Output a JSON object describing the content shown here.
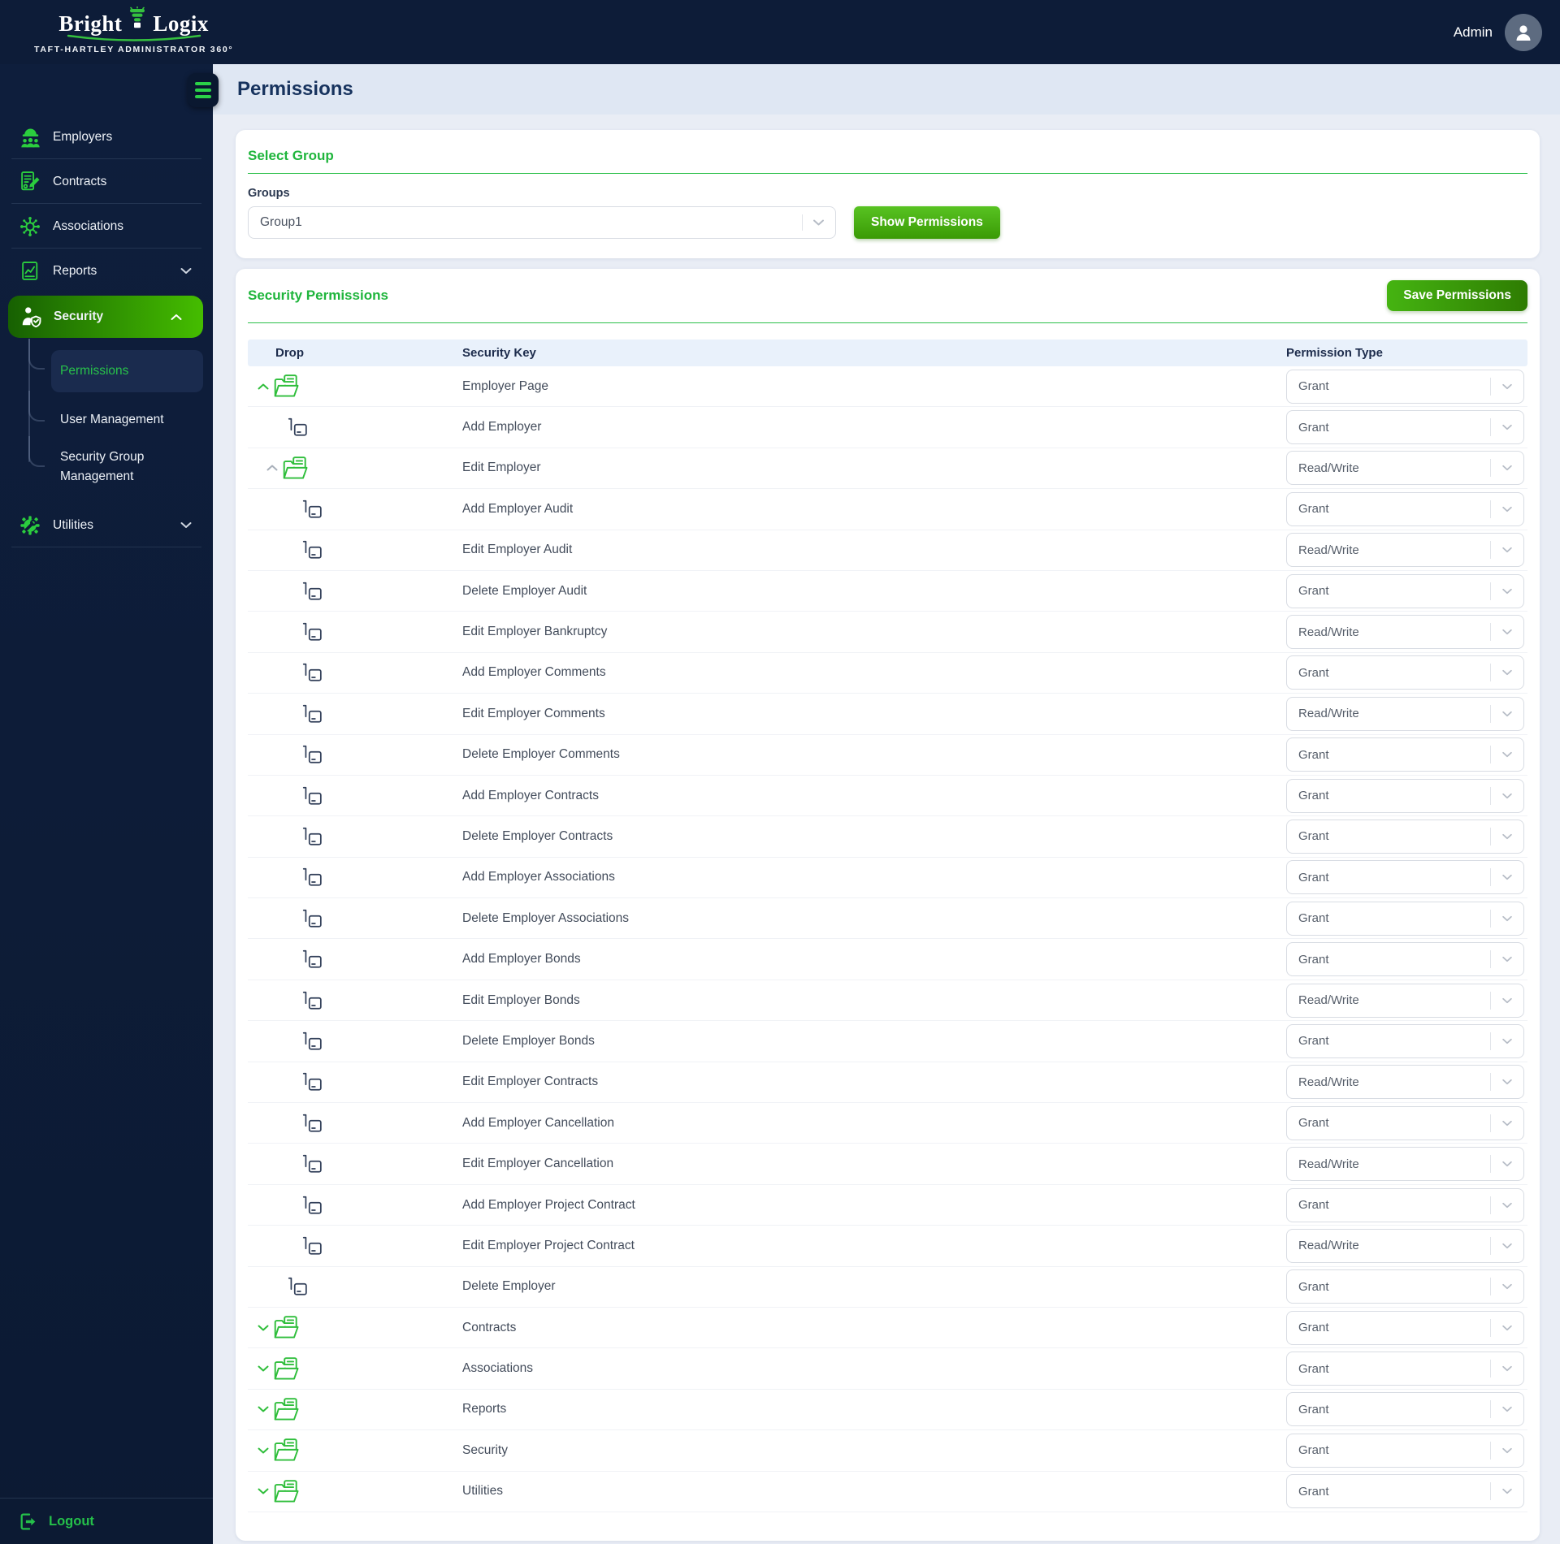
{
  "brand": {
    "word1": "Bright",
    "word2": "Logix",
    "tagline": "Taft-Hartley Administrator 360°"
  },
  "topbar": {
    "username": "Admin"
  },
  "page_title": "Permissions",
  "sidebar": {
    "items": [
      {
        "label": "Employers",
        "icon": "employers-icon"
      },
      {
        "label": "Contracts",
        "icon": "contracts-icon"
      },
      {
        "label": "Associations",
        "icon": "associations-icon"
      },
      {
        "label": "Reports",
        "icon": "reports-icon",
        "chevron": "down"
      },
      {
        "label": "Security",
        "icon": "security-icon",
        "chevron": "up",
        "active": true
      },
      {
        "label": "Utilities",
        "icon": "utilities-icon",
        "chevron": "down"
      }
    ],
    "security_submenu": [
      {
        "label": "Permissions",
        "active": true
      },
      {
        "label": "User Management"
      },
      {
        "label": "Security Group Management"
      }
    ],
    "logout_label": "Logout"
  },
  "select_group": {
    "heading": "Select Group",
    "groups_label": "Groups",
    "selected_group": "Group1",
    "show_permissions_label": "Show Permissions"
  },
  "security_permissions": {
    "heading": "Security Permissions",
    "save_label": "Save Permissions",
    "columns": {
      "drop": "Drop",
      "key": "Security Key",
      "type": "Permission Type"
    },
    "rows": [
      {
        "key": "Employer Page",
        "permission": "Grant",
        "kind": "group",
        "chevron": "up",
        "chevron_color": "green",
        "indent": 0,
        "icon": "folder-open-icon"
      },
      {
        "key": "Add Employer",
        "permission": "Grant",
        "kind": "leaf",
        "indent": 1,
        "icon": "subitem-icon"
      },
      {
        "key": "Edit Employer",
        "permission": "Read/Write",
        "kind": "group",
        "chevron": "up",
        "chevron_color": "gray",
        "indent": 1,
        "icon": "folder-open-icon"
      },
      {
        "key": "Add Employer Audit",
        "permission": "Grant",
        "kind": "leaf",
        "indent": 2,
        "icon": "subitem-icon"
      },
      {
        "key": "Edit Employer Audit",
        "permission": "Read/Write",
        "kind": "leaf",
        "indent": 2,
        "icon": "subitem-icon"
      },
      {
        "key": "Delete Employer Audit",
        "permission": "Grant",
        "kind": "leaf",
        "indent": 2,
        "icon": "subitem-icon"
      },
      {
        "key": "Edit Employer Bankruptcy",
        "permission": "Read/Write",
        "kind": "leaf",
        "indent": 2,
        "icon": "subitem-icon"
      },
      {
        "key": "Add Employer Comments",
        "permission": "Grant",
        "kind": "leaf",
        "indent": 2,
        "icon": "subitem-icon"
      },
      {
        "key": "Edit Employer Comments",
        "permission": "Read/Write",
        "kind": "leaf",
        "indent": 2,
        "icon": "subitem-icon"
      },
      {
        "key": "Delete Employer Comments",
        "permission": "Grant",
        "kind": "leaf",
        "indent": 2,
        "icon": "subitem-icon"
      },
      {
        "key": "Add Employer Contracts",
        "permission": "Grant",
        "kind": "leaf",
        "indent": 2,
        "icon": "subitem-icon"
      },
      {
        "key": "Delete Employer Contracts",
        "permission": "Grant",
        "kind": "leaf",
        "indent": 2,
        "icon": "subitem-icon"
      },
      {
        "key": "Add Employer Associations",
        "permission": "Grant",
        "kind": "leaf",
        "indent": 2,
        "icon": "subitem-icon"
      },
      {
        "key": "Delete Employer Associations",
        "permission": "Grant",
        "kind": "leaf",
        "indent": 2,
        "icon": "subitem-icon"
      },
      {
        "key": "Add Employer Bonds",
        "permission": "Grant",
        "kind": "leaf",
        "indent": 2,
        "icon": "subitem-icon"
      },
      {
        "key": "Edit Employer Bonds",
        "permission": "Read/Write",
        "kind": "leaf",
        "indent": 2,
        "icon": "subitem-icon"
      },
      {
        "key": "Delete Employer Bonds",
        "permission": "Grant",
        "kind": "leaf",
        "indent": 2,
        "icon": "subitem-icon"
      },
      {
        "key": "Edit Employer Contracts",
        "permission": "Read/Write",
        "kind": "leaf",
        "indent": 2,
        "icon": "subitem-icon"
      },
      {
        "key": "Add Employer Cancellation",
        "permission": "Grant",
        "kind": "leaf",
        "indent": 2,
        "icon": "subitem-icon"
      },
      {
        "key": "Edit Employer Cancellation",
        "permission": "Read/Write",
        "kind": "leaf",
        "indent": 2,
        "icon": "subitem-icon"
      },
      {
        "key": "Add Employer Project Contract",
        "permission": "Grant",
        "kind": "leaf",
        "indent": 2,
        "icon": "subitem-icon"
      },
      {
        "key": "Edit Employer Project Contract",
        "permission": "Read/Write",
        "kind": "leaf",
        "indent": 2,
        "icon": "subitem-icon"
      },
      {
        "key": "Delete Employer",
        "permission": "Grant",
        "kind": "leaf",
        "indent": 1,
        "icon": "subitem-icon"
      },
      {
        "key": "Contracts",
        "permission": "Grant",
        "kind": "group",
        "chevron": "down",
        "chevron_color": "green",
        "indent": 0,
        "icon": "folder-open-icon"
      },
      {
        "key": "Associations",
        "permission": "Grant",
        "kind": "group",
        "chevron": "down",
        "chevron_color": "green",
        "indent": 0,
        "icon": "folder-open-icon"
      },
      {
        "key": "Reports",
        "permission": "Grant",
        "kind": "group",
        "chevron": "down",
        "chevron_color": "green",
        "indent": 0,
        "icon": "folder-open-icon"
      },
      {
        "key": "Security",
        "permission": "Grant",
        "kind": "group",
        "chevron": "down",
        "chevron_color": "green",
        "indent": 0,
        "icon": "folder-open-icon"
      },
      {
        "key": "Utilities",
        "permission": "Grant",
        "kind": "group",
        "chevron": "down",
        "chevron_color": "green",
        "indent": 0,
        "icon": "folder-open-icon"
      }
    ]
  },
  "colors": {
    "accent_green": "#1fb53c",
    "icon_green": "#2bce3e",
    "navy": "#0d1c38",
    "table_header_bg": "#e9f1fb",
    "active_gradient_start": "#176002",
    "active_gradient_end": "#45bd00",
    "button_gradient_start": "#58c322",
    "button_gradient_end": "#3a9a05"
  }
}
